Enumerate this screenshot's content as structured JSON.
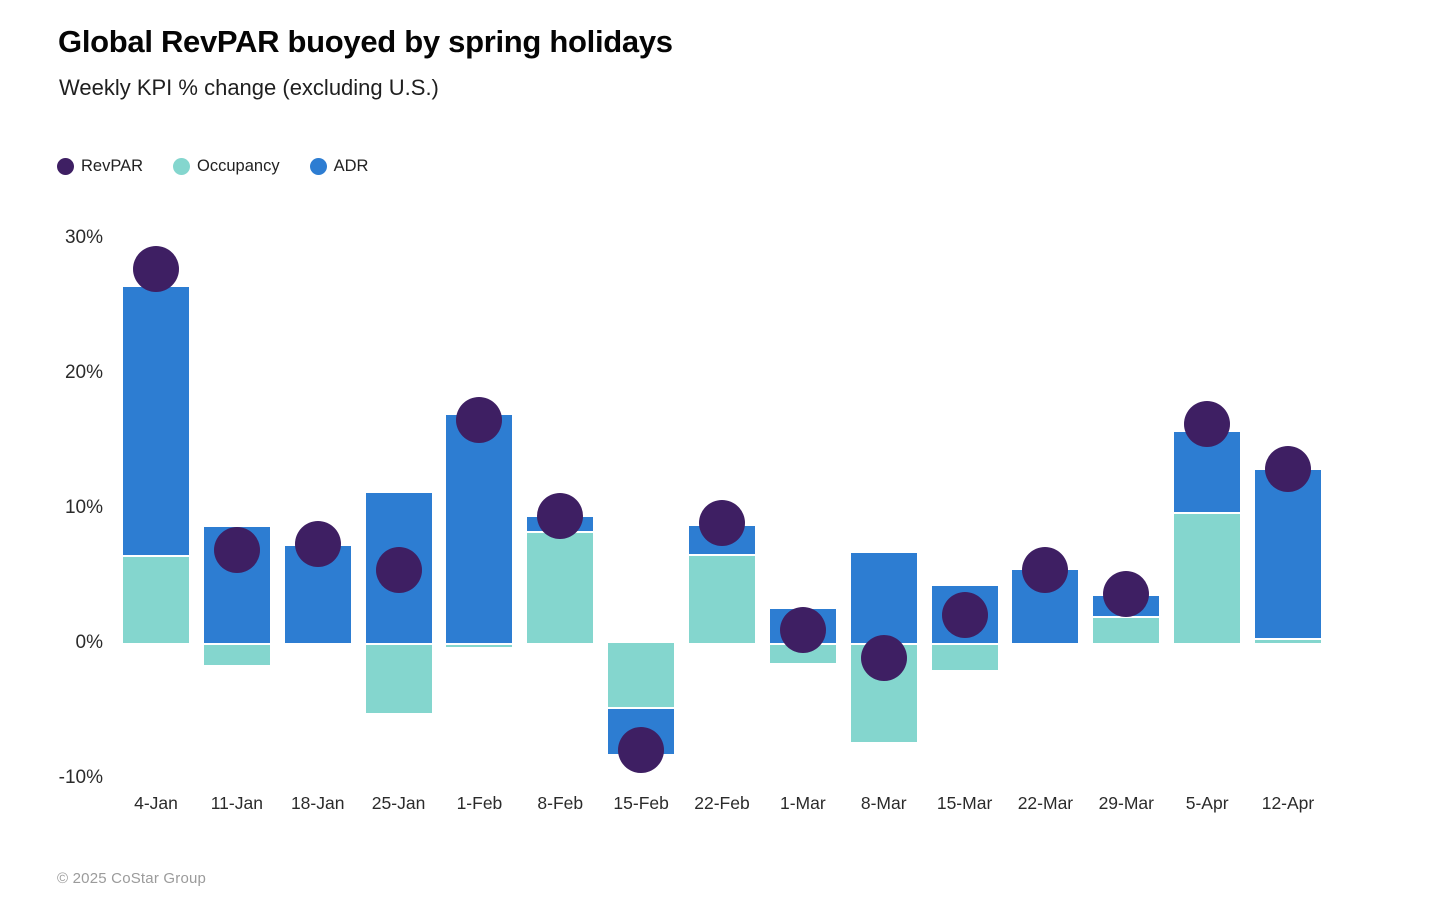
{
  "header": {
    "title": "Global RevPAR buoyed by spring holidays",
    "subtitle": "Weekly KPI % change (excluding U.S.)"
  },
  "legend": [
    {
      "label": "RevPAR",
      "color": "#3e1f63"
    },
    {
      "label": "Occupancy",
      "color": "#84d6ce"
    },
    {
      "label": "ADR",
      "color": "#2d7dd2"
    }
  ],
  "footer": {
    "copyright": "© 2025 CoStar Group"
  },
  "chart_data": {
    "type": "bar",
    "subtype": "stacked-bars-with-revpar-dots",
    "title": "Global RevPAR buoyed by spring holidays",
    "subtitle": "Weekly KPI % change (excluding U.S.)",
    "xlabel": "",
    "ylabel": "Weekly KPI % change",
    "grid": false,
    "legend_position": "top-left",
    "ylim": [
      -13,
      32
    ],
    "y_ticks": [
      {
        "label": "30%",
        "value": 30
      },
      {
        "label": "20%",
        "value": 20
      },
      {
        "label": "10%",
        "value": 10
      },
      {
        "label": "0%",
        "value": 0
      },
      {
        "label": "-10%",
        "value": -10
      }
    ],
    "categories": [
      "4-Jan",
      "11-Jan",
      "18-Jan",
      "25-Jan",
      "1-Feb",
      "8-Feb",
      "15-Feb",
      "22-Feb",
      "1-Mar",
      "8-Mar",
      "15-Mar",
      "22-Mar",
      "29-Mar",
      "5-Apr",
      "12-Apr"
    ],
    "series": [
      {
        "name": "Occupancy",
        "render": "stacked-bar",
        "color": "#84d6ce",
        "values": [
          6.5,
          -1.6,
          0.0,
          -5.2,
          -0.3,
          8.3,
          -4.9,
          6.6,
          -1.5,
          -7.3,
          -2.0,
          0.0,
          2.0,
          9.7,
          0.4
        ]
      },
      {
        "name": "ADR",
        "render": "stacked-bar",
        "color": "#2d7dd2",
        "values": [
          19.9,
          8.6,
          7.2,
          11.1,
          16.9,
          1.0,
          -3.3,
          2.1,
          2.5,
          6.7,
          4.2,
          5.4,
          1.5,
          5.9,
          12.4
        ]
      },
      {
        "name": "RevPAR",
        "render": "dot",
        "color": "#3e1f63",
        "values": [
          27.7,
          6.9,
          7.3,
          5.4,
          16.5,
          9.4,
          -7.9,
          8.9,
          1.0,
          -1.1,
          2.1,
          5.4,
          3.6,
          16.2,
          12.9
        ]
      }
    ]
  }
}
